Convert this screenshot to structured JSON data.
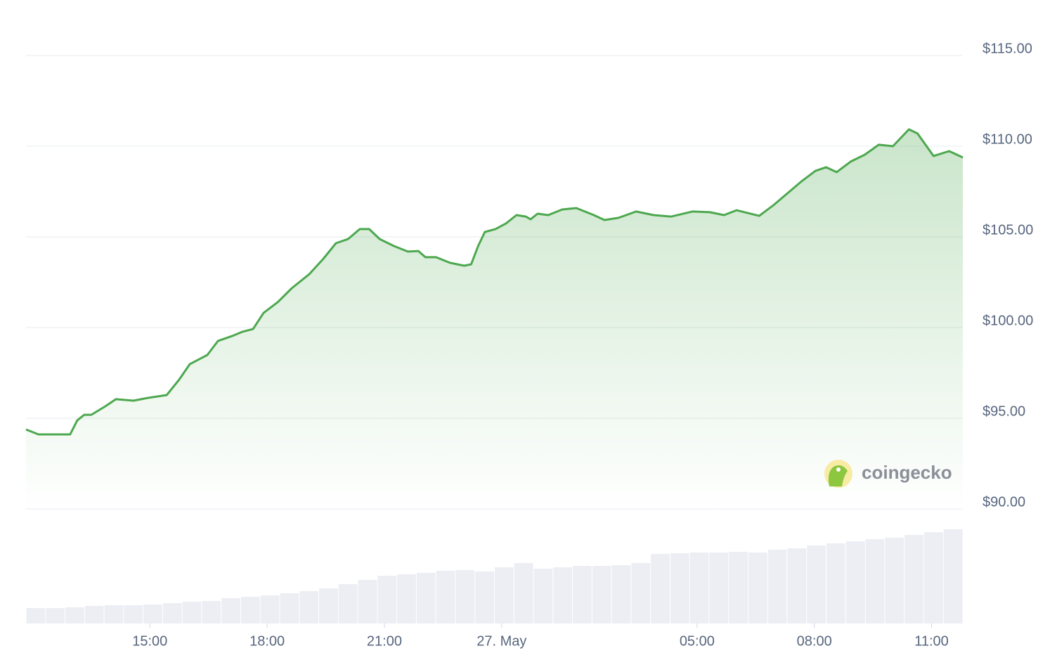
{
  "chart_data": {
    "type": "line",
    "watermark": "coingecko",
    "x": [
      11.83,
      12.15,
      12.78,
      12.96,
      13.14,
      13.32,
      13.5,
      13.86,
      14.13,
      14.58,
      14.94,
      15.43,
      15.75,
      16.02,
      16.47,
      16.74,
      17.1,
      17.37,
      17.64,
      17.91,
      18.27,
      18.63,
      19.08,
      19.44,
      19.76,
      20.07,
      20.37,
      20.61,
      20.88,
      21.24,
      21.6,
      21.87,
      22.05,
      22.32,
      22.68,
      23.04,
      23.22,
      23.4,
      23.57,
      23.84,
      24.11,
      24.38,
      24.62,
      24.74,
      24.92,
      25.19,
      25.55,
      25.91,
      26.36,
      26.63,
      26.99,
      27.44,
      27.89,
      28.34,
      28.88,
      29.33,
      29.69,
      30.01,
      30.59,
      30.95,
      31.31,
      31.67,
      32.03,
      32.3,
      32.57,
      32.93,
      33.29,
      33.65,
      34.01,
      34.42,
      34.64,
      35.05,
      35.45,
      35.8
    ],
    "series": [
      {
        "color": "#4da84f",
        "values": [
          94.38,
          94.11,
          94.11,
          94.11,
          94.88,
          95.19,
          95.19,
          95.66,
          96.05,
          95.97,
          96.12,
          96.28,
          97.13,
          97.98,
          98.49,
          99.26,
          99.53,
          99.77,
          99.92,
          100.81,
          101.4,
          102.17,
          102.95,
          103.8,
          104.65,
          104.88,
          105.43,
          105.43,
          104.88,
          104.5,
          104.19,
          104.22,
          103.88,
          103.88,
          103.57,
          103.41,
          103.49,
          104.5,
          105.27,
          105.43,
          105.74,
          106.2,
          106.12,
          105.97,
          106.28,
          106.2,
          106.51,
          106.59,
          106.2,
          105.93,
          106.05,
          106.4,
          106.2,
          106.12,
          106.4,
          106.36,
          106.2,
          106.47,
          106.16,
          106.74,
          107.4,
          108.06,
          108.64,
          108.84,
          108.57,
          109.15,
          109.53,
          110.08,
          110.0,
          110.93,
          110.7,
          109.46,
          109.73,
          109.38
        ]
      }
    ],
    "volume": {
      "color": "#eceef3",
      "values": [
        22,
        22,
        23,
        25,
        26,
        26,
        27,
        29,
        31,
        32,
        36,
        38,
        40,
        43,
        46,
        50,
        56,
        62,
        68,
        70,
        72,
        75,
        76,
        74,
        80,
        86,
        78,
        80,
        82,
        82,
        83,
        86,
        99,
        100,
        101,
        101,
        102,
        101,
        105,
        107,
        111,
        114,
        117,
        120,
        122,
        126,
        130,
        134
      ]
    },
    "xlim": [
      11.83,
      35.8
    ],
    "xticks": [
      {
        "value": 15,
        "label": "15:00"
      },
      {
        "value": 18,
        "label": "18:00"
      },
      {
        "value": 21,
        "label": "21:00"
      },
      {
        "value": 24,
        "label": "27. May"
      },
      {
        "value": 29,
        "label": "05:00"
      },
      {
        "value": 32,
        "label": "08:00"
      },
      {
        "value": 35,
        "label": "11:00"
      }
    ],
    "ylim": [
      90,
      115
    ],
    "yticks": [
      {
        "value": 90,
        "label": "$90.00"
      },
      {
        "value": 95,
        "label": "$95.00"
      },
      {
        "value": 100,
        "label": "$100.00"
      },
      {
        "value": 105,
        "label": "$105.00"
      },
      {
        "value": 110,
        "label": "$110.00"
      },
      {
        "value": 115,
        "label": "$115.00"
      }
    ],
    "grid": true
  }
}
